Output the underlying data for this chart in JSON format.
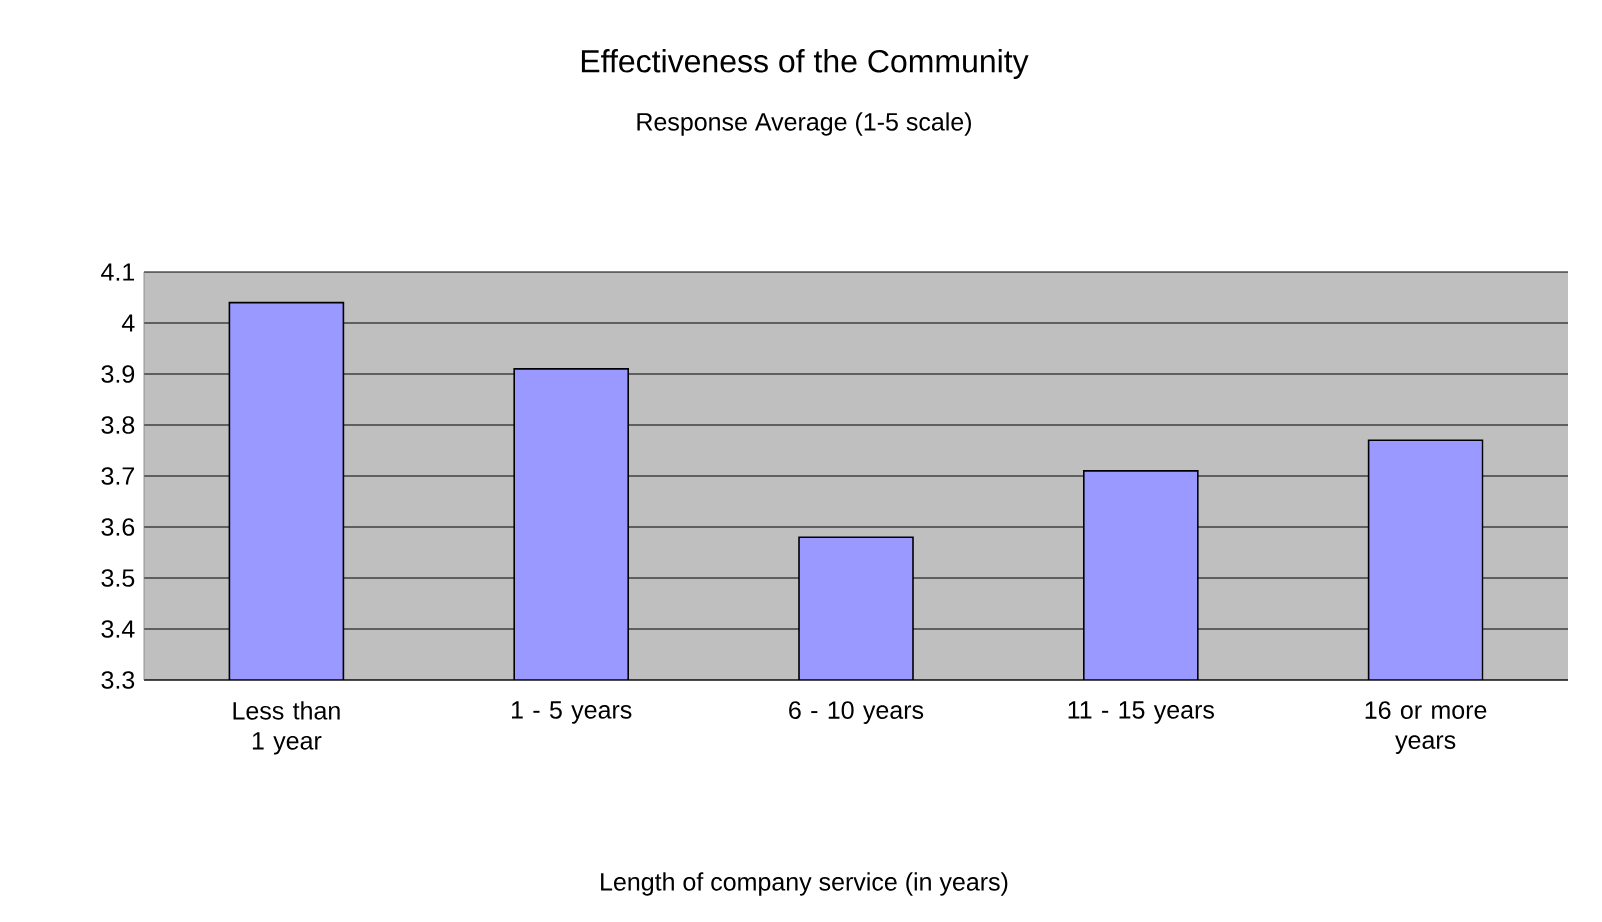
{
  "chart_data": {
    "type": "bar",
    "title": "Effectiveness of the Community",
    "subtitle": "Response Average (1-5 scale)",
    "xlabel": "Length of company service (in years)",
    "categories": [
      "Less than 1 year",
      "1 - 5 years",
      "6 - 10 years",
      "11 - 15 years",
      "16 or more years"
    ],
    "values": [
      4.04,
      3.91,
      3.58,
      3.71,
      3.77
    ],
    "color": "#9999ff",
    "ylim": [
      3.3,
      4.1
    ],
    "yticks": [
      3.3,
      3.4,
      3.5,
      3.6,
      3.7,
      3.8,
      3.9,
      4,
      4.1
    ],
    "grid": "y"
  }
}
